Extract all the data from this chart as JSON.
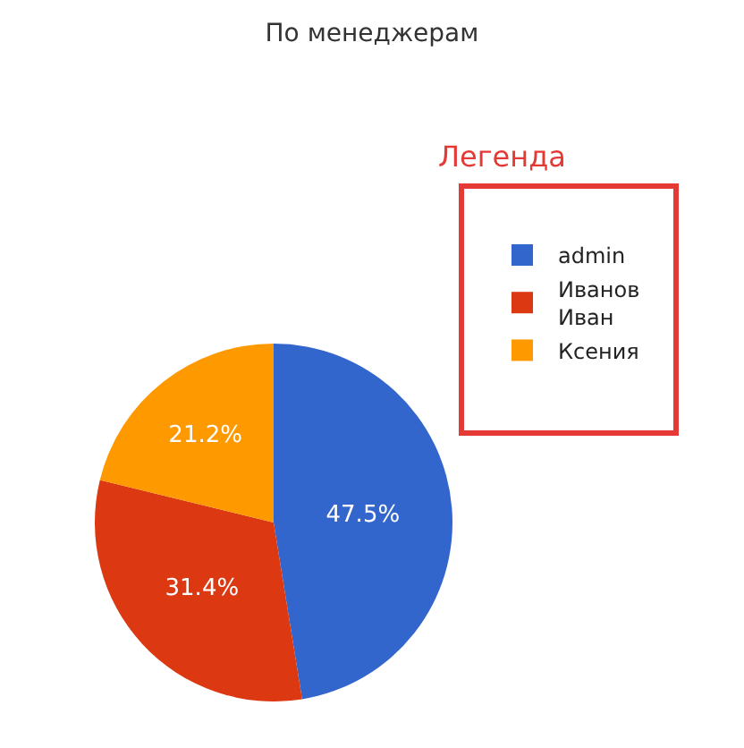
{
  "chart_data": {
    "type": "pie",
    "title": "По менеджерам",
    "categories": [
      "admin",
      "Иванов Иван",
      "Ксения"
    ],
    "values": [
      47.5,
      31.4,
      21.2
    ],
    "colors": [
      "#3366cc",
      "#dc3912",
      "#ff9900"
    ],
    "value_labels": [
      "47.5%",
      "31.4%",
      "21.2%"
    ],
    "legend": "right",
    "annotations": [
      "Легенда"
    ]
  }
}
